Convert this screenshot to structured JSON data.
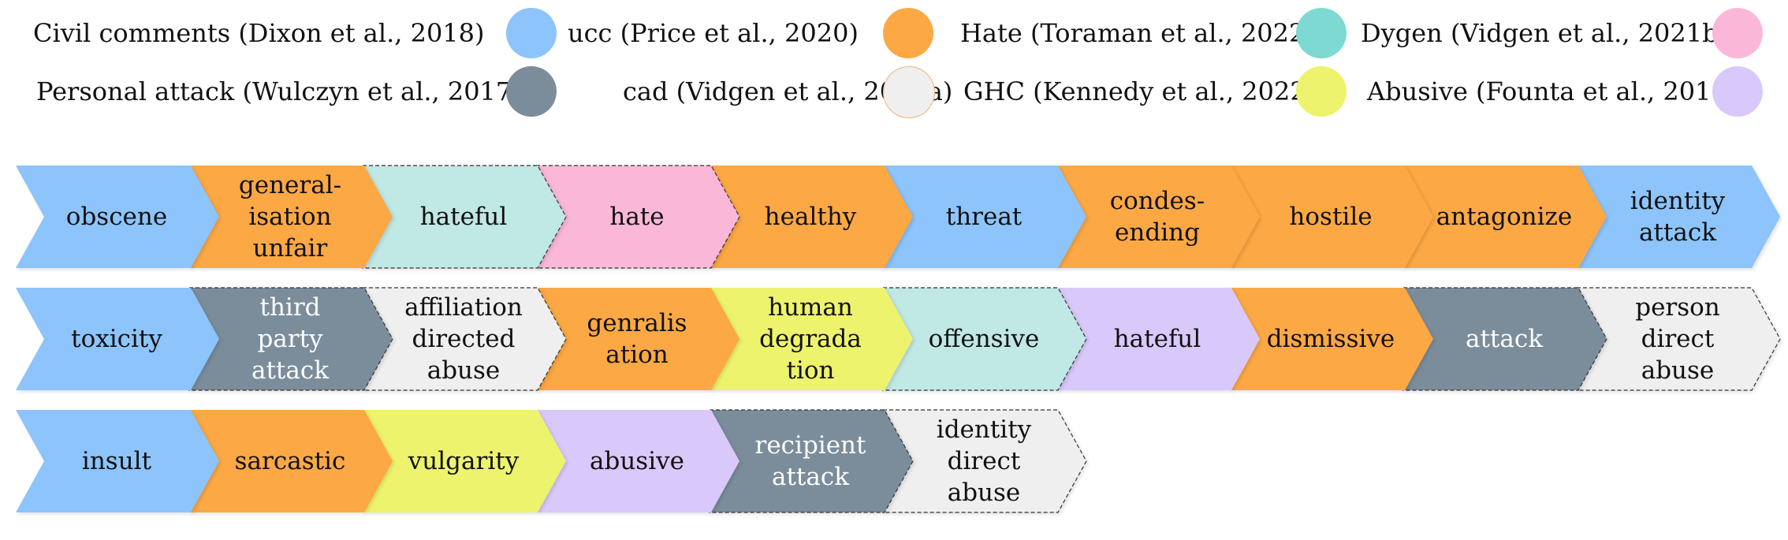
{
  "legend": [
    {
      "label": "Civil comments (Dixon et al., 2018)",
      "color": "#8cc4fb"
    },
    {
      "label": "ucc (Price et al., 2020)",
      "color": "#fca844"
    },
    {
      "label": "Hate (Toraman et al., 2022)",
      "color": "#7dd9d1"
    },
    {
      "label": "Dygen (Vidgen et al., 2021b)",
      "color": "#fbb7d8"
    },
    {
      "label": "Personal attack (Wulczyn et al., 2017)",
      "color": "#7b8d9b"
    },
    {
      "label": "cad (Vidgen et al., 2021a)",
      "color": "#efefef"
    },
    {
      "label": "GHC (Kennedy et al., 2022)",
      "color": "#eef36e"
    },
    {
      "label": "Abusive (Founta et al., 2018)",
      "color": "#d9c9fb"
    }
  ],
  "rows": [
    [
      {
        "label": "obscene",
        "color": "#8cc4fb"
      },
      {
        "label": "general-\nisation\nunfair",
        "color": "#fca844"
      },
      {
        "label": "hateful",
        "color": "#c0e8e5"
      },
      {
        "label": "hate",
        "color": "#fbb7d8"
      },
      {
        "label": "healthy",
        "color": "#fca844"
      },
      {
        "label": "threat",
        "color": "#8cc4fb"
      },
      {
        "label": "condes-\nending",
        "color": "#fca844"
      },
      {
        "label": "hostile",
        "color": "#fca844"
      },
      {
        "label": "antagonize",
        "color": "#fca844"
      },
      {
        "label": "identity\nattack",
        "color": "#8cc4fb"
      }
    ],
    [
      {
        "label": "toxicity",
        "color": "#8cc4fb"
      },
      {
        "label": "third\nparty\nattack",
        "color": "#7b8d9b",
        "light": true
      },
      {
        "label": "affiliation\ndirected\nabuse",
        "color": "#efefef"
      },
      {
        "label": "genralis\nation",
        "color": "#fca844"
      },
      {
        "label": "human\ndegrada\ntion",
        "color": "#eef36e"
      },
      {
        "label": "offensive",
        "color": "#c0e8e5"
      },
      {
        "label": "hateful",
        "color": "#d9c9fb"
      },
      {
        "label": "dismissive",
        "color": "#fca844"
      },
      {
        "label": "attack",
        "color": "#7b8d9b",
        "light": true
      },
      {
        "label": "person\ndirect\nabuse",
        "color": "#efefef"
      }
    ],
    [
      {
        "label": "insult",
        "color": "#8cc4fb"
      },
      {
        "label": "sarcastic",
        "color": "#fca844"
      },
      {
        "label": "vulgarity",
        "color": "#eef36e"
      },
      {
        "label": "abusive",
        "color": "#d9c9fb"
      },
      {
        "label": "recipient\nattack",
        "color": "#7b8d9b",
        "light": true
      },
      {
        "label": "identity\ndirect\nabuse",
        "color": "#efefef"
      }
    ]
  ]
}
